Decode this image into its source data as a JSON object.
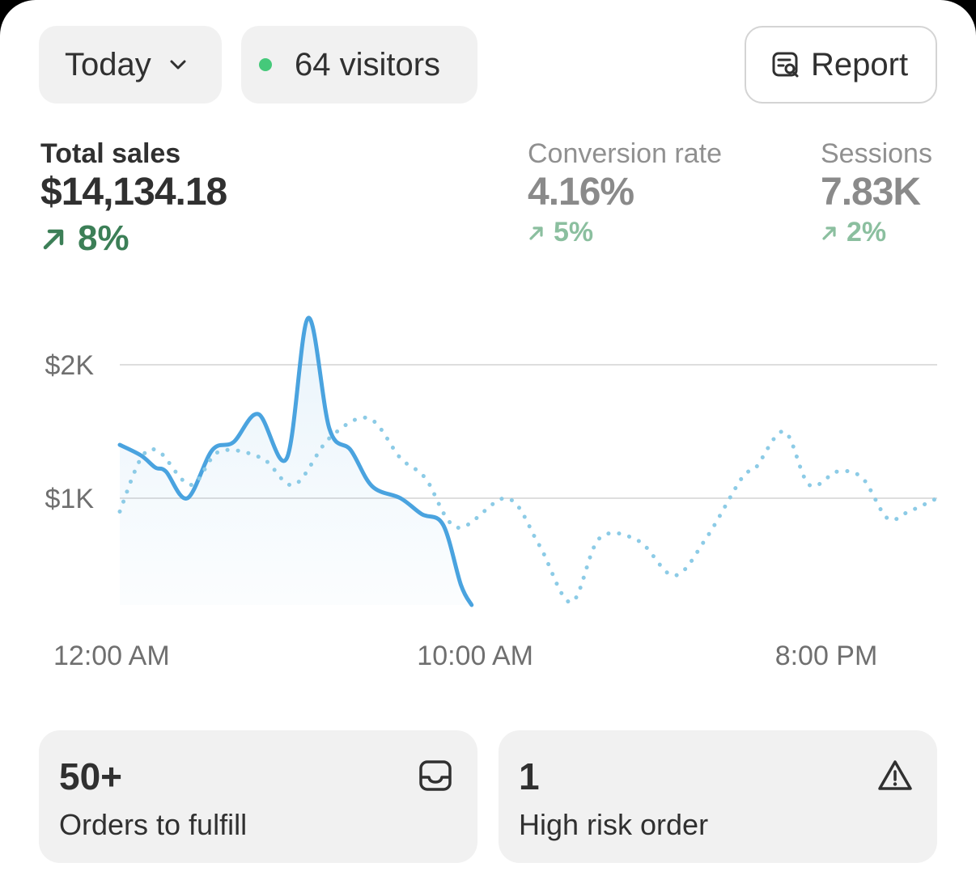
{
  "filters": {
    "period_label": "Today",
    "visitors_label": "64 visitors"
  },
  "toolbar": {
    "report_label": "Report"
  },
  "metrics": {
    "total_sales": {
      "label": "Total sales",
      "value": "$14,134.18",
      "change": "8%"
    },
    "conversion_rate": {
      "label": "Conversion rate",
      "value": "4.16%",
      "change": "5%"
    },
    "sessions": {
      "label": "Sessions",
      "value": "7.83K",
      "change": "2%"
    }
  },
  "colors": {
    "accent_line": "#4aa3df",
    "comparison_line": "#8ccbe6",
    "positive_green": "#3c7f57",
    "positive_green_muted": "#8bbf9f",
    "live_dot": "#45c97a"
  },
  "chart_data": {
    "type": "line",
    "x_ticks": [
      "12:00 AM",
      "10:00 AM",
      "8:00 PM"
    ],
    "y_ticks": [
      "$1K",
      "$2K"
    ],
    "y_tick_values": [
      1000,
      2000
    ],
    "ylim": [
      0,
      2500
    ],
    "x_range_hours": [
      0,
      23
    ],
    "grid": true,
    "series": [
      {
        "style": "solid",
        "x": [
          0,
          0.6,
          1,
          1.3,
          1.9,
          2.6,
          3.2,
          3.9,
          4.7,
          5.3,
          5.9,
          6.5,
          7.1,
          7.9,
          8.5,
          9.1,
          9.6,
          9.9
        ],
        "y": [
          1400,
          1320,
          1230,
          1200,
          1000,
          1360,
          1420,
          1630,
          1300,
          2350,
          1520,
          1360,
          1090,
          1000,
          880,
          800,
          350,
          200
        ]
      },
      {
        "style": "dotted",
        "x": [
          0,
          0.6,
          1.1,
          2.0,
          2.8,
          4.0,
          4.9,
          5.9,
          7.0,
          7.9,
          8.6,
          9.5,
          10.9,
          11.8,
          12.7,
          13.5,
          14.6,
          15.6,
          16.5,
          17.5,
          17.9,
          18.7,
          19.4,
          20.2,
          20.9,
          21.6,
          22.2,
          23.0
        ],
        "y": [
          900,
          1300,
          1350,
          1100,
          1350,
          1300,
          1100,
          1450,
          1600,
          1300,
          1150,
          780,
          1000,
          650,
          220,
          700,
          680,
          420,
          700,
          1150,
          1230,
          1500,
          1100,
          1200,
          1150,
          850,
          900,
          1000
        ]
      }
    ]
  },
  "tiles": {
    "orders": {
      "count": "50+",
      "caption": "Orders to fulfill",
      "icon": "inbox-icon"
    },
    "risk": {
      "count": "1",
      "caption": "High risk order",
      "icon": "warning-icon"
    }
  }
}
